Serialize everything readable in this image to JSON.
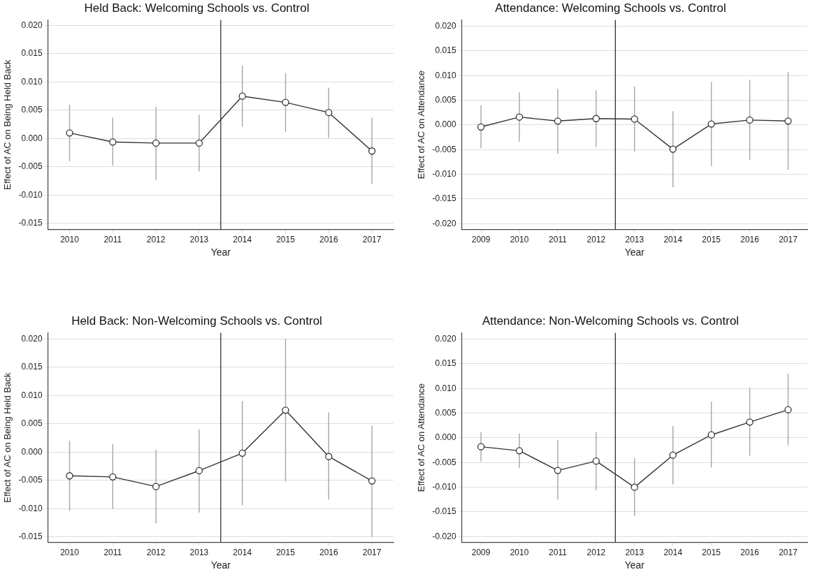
{
  "chart_data": [
    {
      "type": "line",
      "title": "Held Back: Welcoming Schools vs. Control",
      "xlabel": "Year",
      "ylabel": "Effect of AC on Being Held Back",
      "x": [
        2010,
        2011,
        2012,
        2013,
        2014,
        2015,
        2016,
        2017
      ],
      "series": [
        {
          "color": "#333333",
          "values": [
            0.001,
            -0.0006,
            -0.0008,
            -0.0008,
            0.0075,
            0.0064,
            0.0046,
            -0.0022
          ],
          "errors": [
            [
              -0.004,
              0.006
            ],
            [
              -0.0048,
              0.0037
            ],
            [
              -0.0073,
              0.0056
            ],
            [
              -0.0058,
              0.0042
            ],
            [
              0.0021,
              0.0129
            ],
            [
              0.0012,
              0.0116
            ],
            [
              0.0001,
              0.009
            ],
            [
              -0.008,
              0.0037
            ]
          ]
        }
      ],
      "xlim": [
        2009.5,
        2017.5
      ],
      "xticks": [
        2010,
        2011,
        2012,
        2013,
        2014,
        2015,
        2016,
        2017
      ],
      "ylim": [
        -0.0161,
        0.021
      ],
      "yticks": [
        {
          "value": -0.015,
          "label": "-0.015"
        },
        {
          "value": -0.01,
          "label": "-0.010"
        },
        {
          "value": -0.005,
          "label": "-0.005"
        },
        {
          "value": 0,
          "label": "0.000"
        },
        {
          "value": 0.005,
          "label": "0.005"
        },
        {
          "value": 0.01,
          "label": "0.010"
        },
        {
          "value": 0.015,
          "label": "0.015"
        },
        {
          "value": 0.02,
          "label": "0.020"
        }
      ],
      "ref_lines": [
        {
          "axis": "x",
          "value": 2013.5,
          "color": "#333333"
        }
      ],
      "grid": "y",
      "marker": "circle",
      "line_style": "solid",
      "legend": false
    },
    {
      "type": "line",
      "title": "Attendance: Welcoming Schools vs. Control",
      "xlabel": "Year",
      "ylabel": "Effect of AC on Attendance",
      "x": [
        2009,
        2010,
        2011,
        2012,
        2013,
        2014,
        2015,
        2016,
        2017
      ],
      "series": [
        {
          "color": "#333333",
          "values": [
            -0.0004,
            0.0016,
            0.0008,
            0.0013,
            0.0012,
            -0.0049,
            0.0002,
            0.001,
            0.0008
          ],
          "errors": [
            [
              -0.0047,
              0.004
            ],
            [
              -0.0034,
              0.0066
            ],
            [
              -0.0058,
              0.0073
            ],
            [
              -0.0045,
              0.007
            ],
            [
              -0.0054,
              0.0078
            ],
            [
              -0.0126,
              0.0028
            ],
            [
              -0.0083,
              0.0087
            ],
            [
              -0.0071,
              0.0092
            ],
            [
              -0.0091,
              0.0107
            ]
          ]
        }
      ],
      "xlim": [
        2008.5,
        2017.5
      ],
      "xticks": [
        2009,
        2010,
        2011,
        2012,
        2013,
        2014,
        2015,
        2016,
        2017
      ],
      "ylim": [
        -0.0212,
        0.0213
      ],
      "yticks": [
        {
          "value": -0.02,
          "label": "-0.020"
        },
        {
          "value": -0.015,
          "label": "-0.015"
        },
        {
          "value": -0.01,
          "label": "-0.010"
        },
        {
          "value": -0.005,
          "label": "-0.005"
        },
        {
          "value": 0,
          "label": "0.000"
        },
        {
          "value": 0.005,
          "label": "0.005"
        },
        {
          "value": 0.01,
          "label": "0.010"
        },
        {
          "value": 0.015,
          "label": "0.015"
        },
        {
          "value": 0.02,
          "label": "0.020"
        }
      ],
      "ref_lines": [
        {
          "axis": "x",
          "value": 2012.5,
          "color": "#333333"
        }
      ],
      "grid": "y",
      "marker": "circle",
      "line_style": "solid",
      "legend": false
    },
    {
      "type": "line",
      "title": "Held Back: Non-Welcoming Schools vs. Control",
      "xlabel": "Year",
      "ylabel": "Effect of AC on Being Held Back",
      "x": [
        2010,
        2011,
        2012,
        2013,
        2014,
        2015,
        2016,
        2017
      ],
      "series": [
        {
          "color": "#333333",
          "values": [
            -0.0042,
            -0.0044,
            -0.0061,
            -0.0033,
            -0.0002,
            0.0074,
            -0.0008,
            -0.0051
          ],
          "errors": [
            [
              -0.0104,
              0.002
            ],
            [
              -0.0101,
              0.0014
            ],
            [
              -0.0126,
              0.0004
            ],
            [
              -0.0107,
              0.004
            ],
            [
              -0.0094,
              0.009
            ],
            [
              -0.0052,
              0.02
            ],
            [
              -0.0084,
              0.007
            ],
            [
              -0.015,
              0.0047
            ]
          ]
        }
      ],
      "xlim": [
        2009.5,
        2017.5
      ],
      "xticks": [
        2010,
        2011,
        2012,
        2013,
        2014,
        2015,
        2016,
        2017
      ],
      "ylim": [
        -0.016,
        0.0211
      ],
      "yticks": [
        {
          "value": -0.015,
          "label": "-0.015"
        },
        {
          "value": -0.01,
          "label": "-0.010"
        },
        {
          "value": -0.005,
          "label": "-0.005"
        },
        {
          "value": 0,
          "label": "0.000"
        },
        {
          "value": 0.005,
          "label": "0.005"
        },
        {
          "value": 0.01,
          "label": "0.010"
        },
        {
          "value": 0.015,
          "label": "0.015"
        },
        {
          "value": 0.02,
          "label": "0.020"
        }
      ],
      "ref_lines": [
        {
          "axis": "x",
          "value": 2013.5,
          "color": "#333333"
        }
      ],
      "grid": "y",
      "marker": "circle",
      "line_style": "solid",
      "legend": false
    },
    {
      "type": "line",
      "title": "Attendance: Non-Welcoming Schools vs. Control",
      "xlabel": "Year",
      "ylabel": "Effect of AC on Attendance",
      "x": [
        2009,
        2010,
        2011,
        2012,
        2013,
        2014,
        2015,
        2016,
        2017
      ],
      "series": [
        {
          "color": "#333333",
          "values": [
            -0.0018,
            -0.0026,
            -0.0066,
            -0.0047,
            -0.01,
            -0.0035,
            0.0006,
            0.0032,
            0.0057
          ],
          "errors": [
            [
              -0.0048,
              0.0012
            ],
            [
              -0.0061,
              0.0009
            ],
            [
              -0.0125,
              -0.0005
            ],
            [
              -0.0106,
              0.0012
            ],
            [
              -0.0158,
              -0.0041
            ],
            [
              -0.0094,
              0.0024
            ],
            [
              -0.006,
              0.0073
            ],
            [
              -0.0036,
              0.0101
            ],
            [
              -0.0015,
              0.013
            ]
          ]
        }
      ],
      "xlim": [
        2008.5,
        2017.5
      ],
      "xticks": [
        2009,
        2010,
        2011,
        2012,
        2013,
        2014,
        2015,
        2016,
        2017
      ],
      "ylim": [
        -0.0212,
        0.0213
      ],
      "yticks": [
        {
          "value": -0.02,
          "label": "-0.020"
        },
        {
          "value": -0.015,
          "label": "-0.015"
        },
        {
          "value": -0.01,
          "label": "-0.010"
        },
        {
          "value": -0.005,
          "label": "-0.005"
        },
        {
          "value": 0,
          "label": "0.000"
        },
        {
          "value": 0.005,
          "label": "0.005"
        },
        {
          "value": 0.01,
          "label": "0.010"
        },
        {
          "value": 0.015,
          "label": "0.015"
        },
        {
          "value": 0.02,
          "label": "0.020"
        }
      ],
      "ref_lines": [
        {
          "axis": "x",
          "value": 2012.5,
          "color": "#333333"
        }
      ],
      "grid": "y",
      "marker": "circle",
      "line_style": "solid",
      "legend": false
    }
  ]
}
